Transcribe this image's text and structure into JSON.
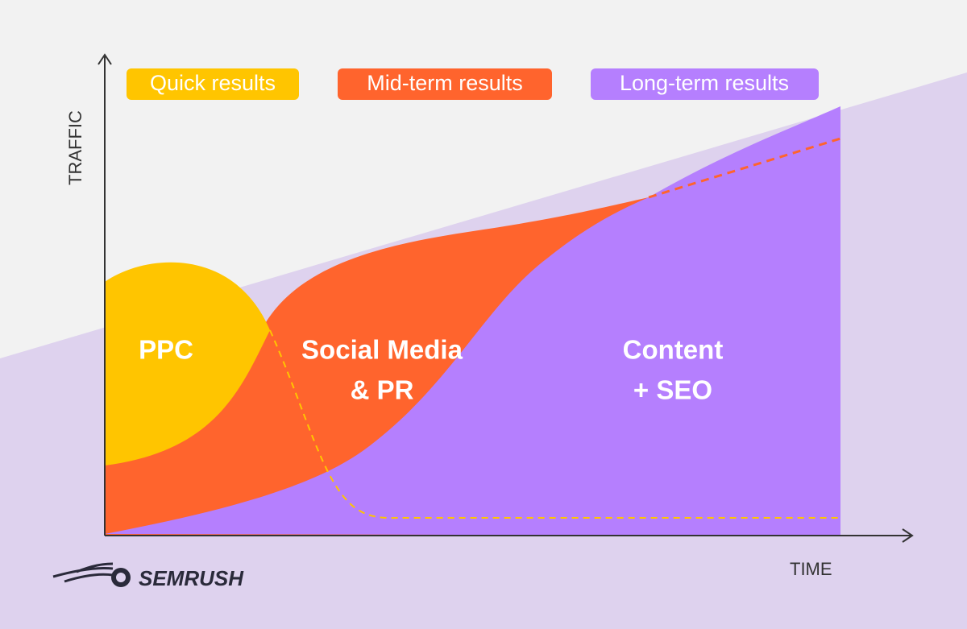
{
  "axes": {
    "y_label": "TRAFFIC",
    "x_label": "TIME"
  },
  "badges": [
    "Quick results",
    "Mid-term results",
    "Long-term results"
  ],
  "areas": [
    {
      "label_lines": [
        "PPC"
      ]
    },
    {
      "label_lines": [
        "Social Media",
        "& PR"
      ]
    },
    {
      "label_lines": [
        "Content",
        "+ SEO"
      ]
    }
  ],
  "logo": {
    "text": "SEMRUSH"
  }
}
